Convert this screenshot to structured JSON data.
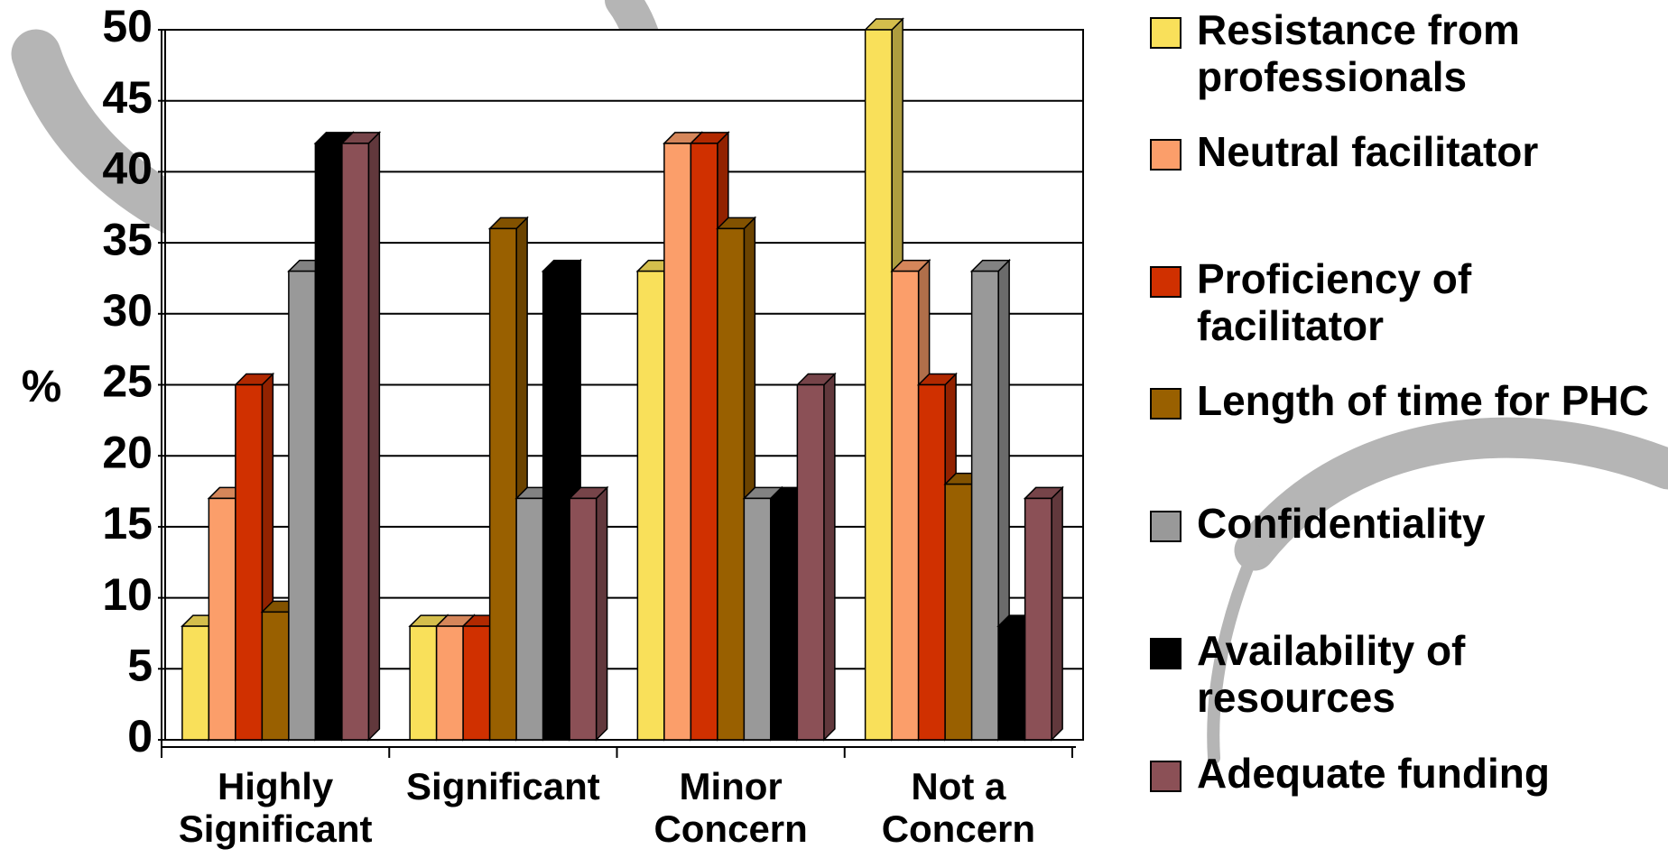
{
  "chart_data": {
    "type": "bar",
    "y_label": "%",
    "categories": [
      "Highly Significant",
      "Significant",
      "Minor Concern",
      "Not a Concern"
    ],
    "series": [
      {
        "name": "Resistance from professionals",
        "color": "#f9e05a",
        "values": [
          8,
          8,
          33,
          50
        ]
      },
      {
        "name": "Neutral facilitator",
        "color": "#fb9e6a",
        "values": [
          17,
          8,
          42,
          33
        ]
      },
      {
        "name": "Proficiency of facilitator",
        "color": "#d03000",
        "values": [
          25,
          8,
          42,
          25
        ]
      },
      {
        "name": "Length of time for PHC",
        "color": "#996000",
        "values": [
          9,
          36,
          36,
          18
        ]
      },
      {
        "name": "Confidentiality",
        "color": "#999999",
        "values": [
          33,
          17,
          17,
          33
        ]
      },
      {
        "name": "Availability of resources",
        "color": "#000000",
        "values": [
          42,
          33,
          17,
          8
        ]
      },
      {
        "name": "Adequate funding",
        "color": "#8b5056",
        "values": [
          42,
          17,
          25,
          17
        ]
      }
    ],
    "ylim": [
      0,
      50
    ],
    "yticks": [
      0,
      5,
      10,
      15,
      20,
      25,
      30,
      35,
      40,
      45,
      50
    ],
    "grid": true
  }
}
